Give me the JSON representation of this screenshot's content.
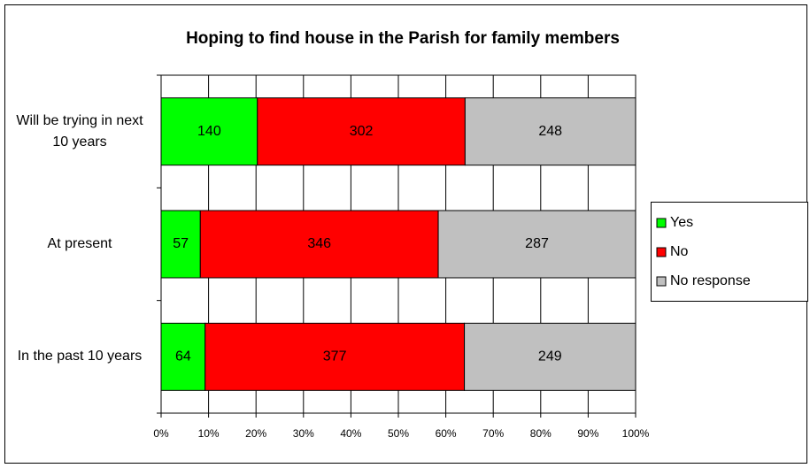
{
  "chart_data": {
    "type": "bar",
    "orientation": "horizontal",
    "stacked": "percent",
    "title": "Hoping to find house in the Parish for family members",
    "categories": [
      "Will be trying in next 10 years",
      "At present",
      "In the past 10 years"
    ],
    "series": [
      {
        "name": "Yes",
        "color": "#00ff00",
        "values": [
          140,
          57,
          64
        ]
      },
      {
        "name": "No",
        "color": "#ff0000",
        "values": [
          302,
          346,
          377
        ]
      },
      {
        "name": "No response",
        "color": "#c0c0c0",
        "values": [
          248,
          287,
          249
        ]
      }
    ],
    "xlim": [
      0,
      100
    ],
    "xticks": [
      {
        "value": 0,
        "label": "0%"
      },
      {
        "value": 10,
        "label": "10%"
      },
      {
        "value": 20,
        "label": "20%"
      },
      {
        "value": 30,
        "label": "30%"
      },
      {
        "value": 40,
        "label": "40%"
      },
      {
        "value": 50,
        "label": "50%"
      },
      {
        "value": 60,
        "label": "60%"
      },
      {
        "value": 70,
        "label": "70%"
      },
      {
        "value": 80,
        "label": "80%"
      },
      {
        "value": 90,
        "label": "90%"
      },
      {
        "value": 100,
        "label": "100%"
      }
    ],
    "grid": true,
    "legend": "right"
  }
}
